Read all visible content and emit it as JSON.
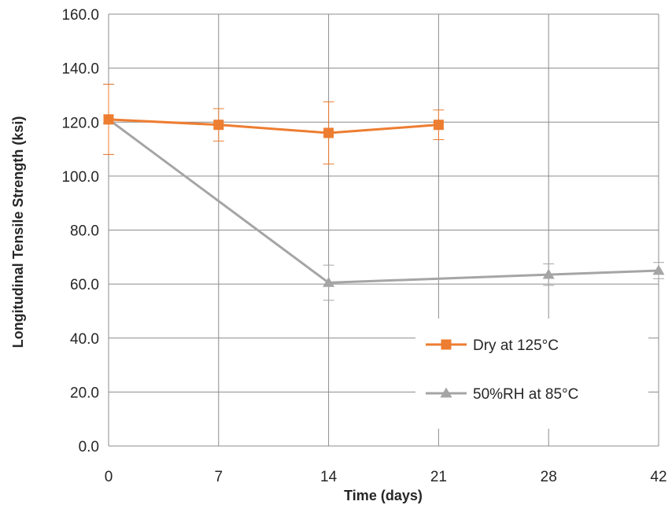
{
  "chart_data": {
    "type": "line",
    "title": "",
    "xlabel": "Time (days)",
    "ylabel": "Longitudinal Tensile Strength (ksi)",
    "x_ticks": [
      "0",
      "7",
      "14",
      "21",
      "28",
      "42"
    ],
    "y_ticks": [
      "0.0",
      "20.0",
      "40.0",
      "60.0",
      "80.0",
      "100.0",
      "120.0",
      "140.0",
      "160.0"
    ],
    "ylim": [
      0,
      160
    ],
    "grid": true,
    "legend_position": "bottom-right",
    "series": [
      {
        "name": "Dry at 125°C",
        "color": "#ED7D31",
        "marker": "square",
        "x": [
          "0",
          "7",
          "14",
          "21"
        ],
        "y": [
          121.0,
          119.0,
          116.0,
          119.0
        ],
        "error": [
          13.0,
          6.0,
          11.5,
          5.5
        ]
      },
      {
        "name": "50%RH at 85°C",
        "color": "#A5A5A5",
        "marker": "triangle",
        "x": [
          "0",
          "14",
          "28",
          "42"
        ],
        "y": [
          121.0,
          60.5,
          63.5,
          65.0
        ],
        "error": [
          13.0,
          6.5,
          4.0,
          3.0
        ]
      }
    ]
  }
}
